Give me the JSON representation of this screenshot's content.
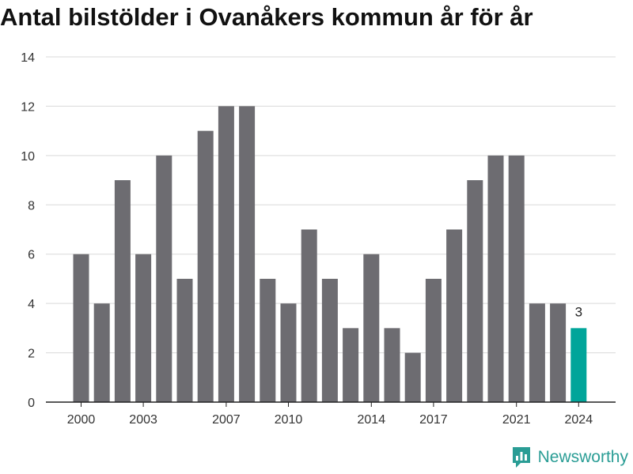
{
  "chart_data": {
    "type": "bar",
    "title": "Antal bilstölder i Ovanåkers kommun år för år",
    "categories": [
      2000,
      2001,
      2002,
      2003,
      2004,
      2005,
      2006,
      2007,
      2008,
      2009,
      2010,
      2011,
      2012,
      2013,
      2014,
      2015,
      2016,
      2017,
      2018,
      2019,
      2020,
      2021,
      2022,
      2023,
      2024
    ],
    "values": [
      6,
      4,
      9,
      6,
      10,
      5,
      11,
      12,
      12,
      5,
      4,
      7,
      5,
      3,
      6,
      3,
      2,
      5,
      7,
      9,
      10,
      10,
      4,
      4,
      3
    ],
    "x_tick_labels": [
      "2000",
      "2003",
      "2007",
      "2010",
      "2014",
      "2017",
      "2021",
      "2024"
    ],
    "y_ticks": [
      0,
      2,
      4,
      6,
      8,
      10,
      12,
      14
    ],
    "ylim": [
      0,
      14
    ],
    "grid": true,
    "bar_color": "#6d6c71",
    "highlight_color": "#00a59a",
    "highlight_index": 24,
    "highlight_label": "3",
    "xlabel": "",
    "ylabel": ""
  },
  "brand": {
    "name": "Newsworthy",
    "logo_icon": "newsworthy-logo-icon",
    "color": "#2a9d95"
  }
}
